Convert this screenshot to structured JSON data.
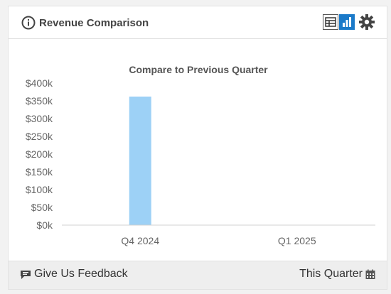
{
  "header": {
    "title": "Revenue Comparison",
    "icons": [
      "info-icon",
      "table-view-icon",
      "bar-chart-icon",
      "gear-icon"
    ]
  },
  "chart_data": {
    "type": "bar",
    "title": "Compare to Previous Quarter",
    "categories": [
      "Q4 2024",
      "Q1 2025"
    ],
    "values": [
      362000,
      1000
    ],
    "ylim": [
      0,
      400000
    ],
    "yticks": [
      "$0k",
      "$50k",
      "$100k",
      "$150k",
      "$200k",
      "$250k",
      "$300k",
      "$350k",
      "$400k"
    ],
    "bar_color": "#9dd1f6",
    "grid": false,
    "legend": "none"
  },
  "footer": {
    "feedback_label": "Give Us Feedback",
    "period_label": "This Quarter"
  },
  "colors": {
    "accent": "#1b7ac9",
    "footer_bg": "#eeeeee"
  }
}
